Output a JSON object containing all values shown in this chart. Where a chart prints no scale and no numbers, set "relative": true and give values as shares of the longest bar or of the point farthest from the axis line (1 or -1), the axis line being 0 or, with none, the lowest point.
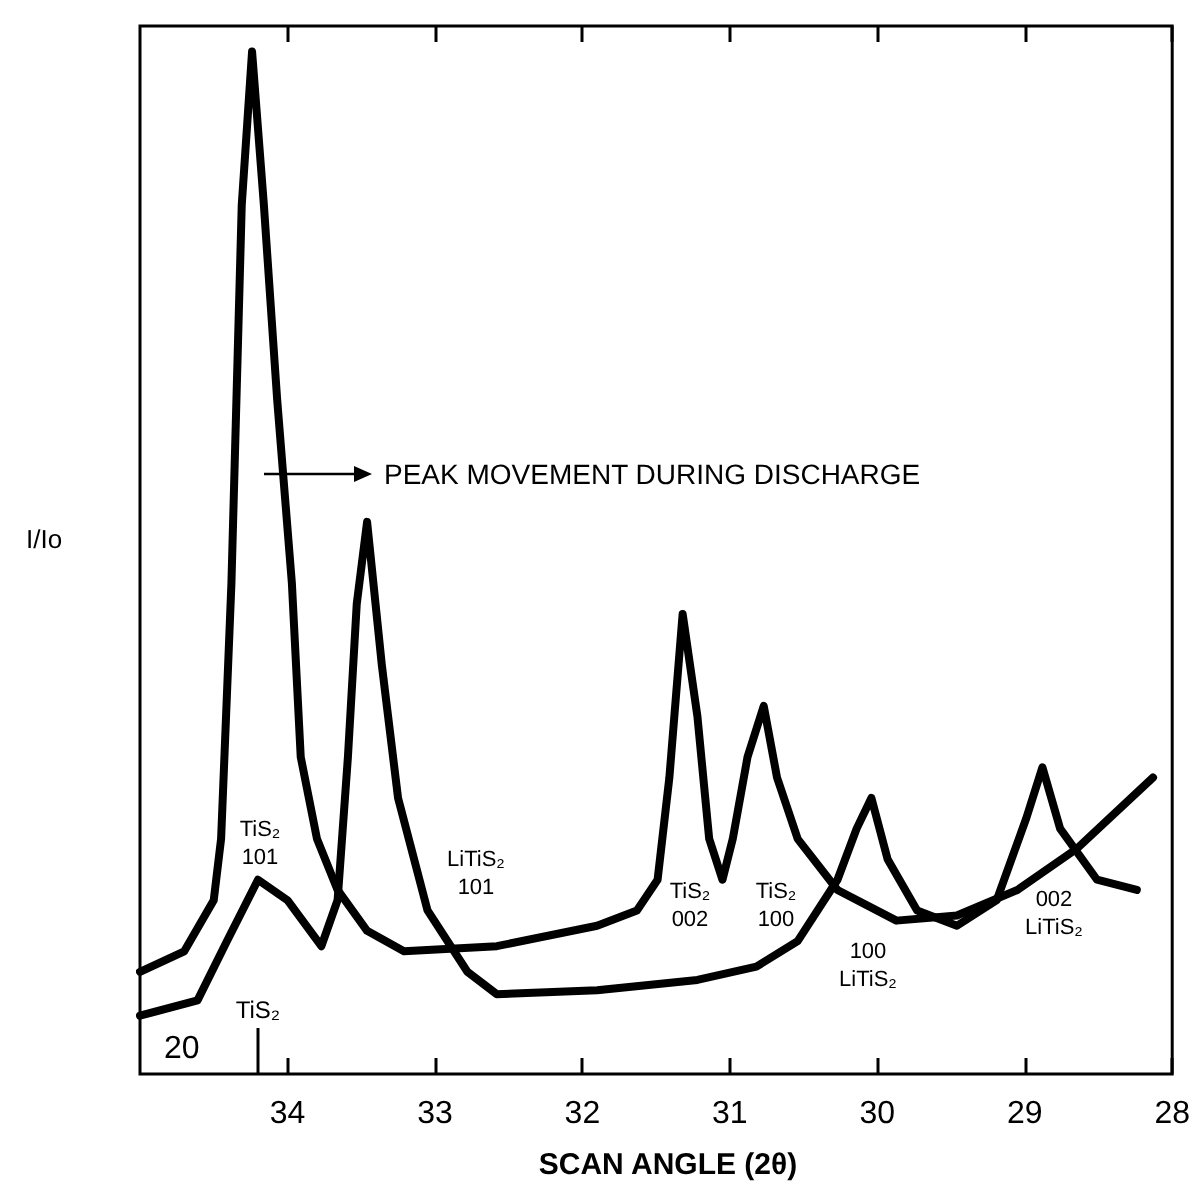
{
  "chart_data": {
    "type": "line",
    "xlabel": "SCAN ANGLE (2θ)",
    "ylabel": "I/Io",
    "relative": true,
    "xlim": [
      35,
      28
    ],
    "xticks": [
      34,
      33,
      32,
      31,
      30,
      29,
      28
    ],
    "grid": false,
    "marker": "none",
    "line_style": "solid",
    "series": [
      {
        "color": "#000000",
        "x": [
          35.0,
          34.7,
          34.5,
          34.45,
          34.38,
          34.31,
          34.24,
          34.16,
          34.07,
          33.97,
          33.91,
          33.8,
          33.66,
          33.46,
          33.21,
          32.58,
          31.9,
          31.63,
          31.49,
          31.41,
          31.32,
          31.22,
          31.14,
          31.05,
          30.98,
          30.88,
          30.77,
          30.68,
          30.54,
          30.27,
          29.87,
          29.46,
          29.05,
          28.65,
          28.13
        ],
        "values": [
          0.1,
          0.12,
          0.17,
          0.23,
          0.48,
          0.85,
          1.0,
          0.85,
          0.66,
          0.48,
          0.31,
          0.23,
          0.18,
          0.14,
          0.12,
          0.125,
          0.145,
          0.16,
          0.19,
          0.29,
          0.45,
          0.35,
          0.23,
          0.19,
          0.23,
          0.31,
          0.36,
          0.29,
          0.23,
          0.18,
          0.15,
          0.155,
          0.18,
          0.22,
          0.29
        ]
      },
      {
        "color": "#000000",
        "x": [
          35.0,
          34.61,
          34.41,
          34.2,
          34.0,
          33.77,
          33.66,
          33.59,
          33.53,
          33.46,
          33.36,
          33.25,
          33.05,
          32.78,
          32.58,
          31.9,
          31.22,
          30.82,
          30.54,
          30.27,
          30.14,
          30.04,
          29.93,
          29.73,
          29.46,
          29.19,
          28.99,
          28.88,
          28.76,
          28.51,
          28.24
        ],
        "values": [
          0.057,
          0.072,
          0.13,
          0.19,
          0.17,
          0.125,
          0.17,
          0.31,
          0.46,
          0.54,
          0.4,
          0.27,
          0.16,
          0.1,
          0.078,
          0.082,
          0.092,
          0.105,
          0.13,
          0.19,
          0.24,
          0.27,
          0.21,
          0.16,
          0.145,
          0.17,
          0.25,
          0.3,
          0.24,
          0.19,
          0.18
        ]
      }
    ],
    "ref_lines": [
      {
        "axis": "x",
        "value": 34.2,
        "label": "TiS₂"
      }
    ],
    "annotations": [
      "PEAK MOVEMENT DURING DISCHARGE",
      "TiS₂ 101",
      "LiTiS₂ 101",
      "TiS₂ 002",
      "TiS₂ 100",
      "100 LiTiS₂",
      "002 LiTiS₂",
      "20"
    ]
  }
}
